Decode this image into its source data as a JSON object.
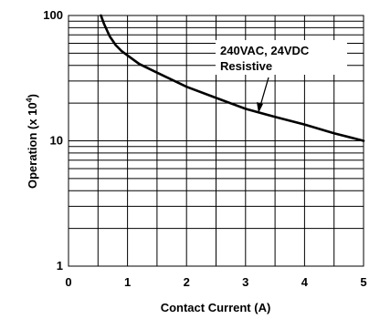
{
  "chart_data": {
    "type": "line",
    "xlabel": "Contact Current (A)",
    "ylabel_main": "Operation (x 10",
    "ylabel_exp": "4",
    "ylabel_close": ")",
    "xlim": [
      0,
      5
    ],
    "ylim": [
      1,
      100
    ],
    "yscale": "log",
    "grid": true,
    "x_ticks": [
      "0",
      "1",
      "2",
      "3",
      "4",
      "5"
    ],
    "y_ticks": [
      "1",
      "10",
      "100"
    ],
    "annotation_line1": "240VAC, 24VDC",
    "annotation_line2": "Resistive",
    "series": [
      {
        "name": "240VAC, 24VDC Resistive",
        "x": [
          0.55,
          0.6,
          0.7,
          0.8,
          0.9,
          1.0,
          1.2,
          1.5,
          2.0,
          2.5,
          3.0,
          3.5,
          4.0,
          4.5,
          5.0
        ],
        "y": [
          100,
          86,
          68,
          58,
          52,
          48,
          41,
          35,
          27,
          22,
          18,
          15.5,
          13.5,
          11.5,
          10
        ]
      }
    ]
  }
}
